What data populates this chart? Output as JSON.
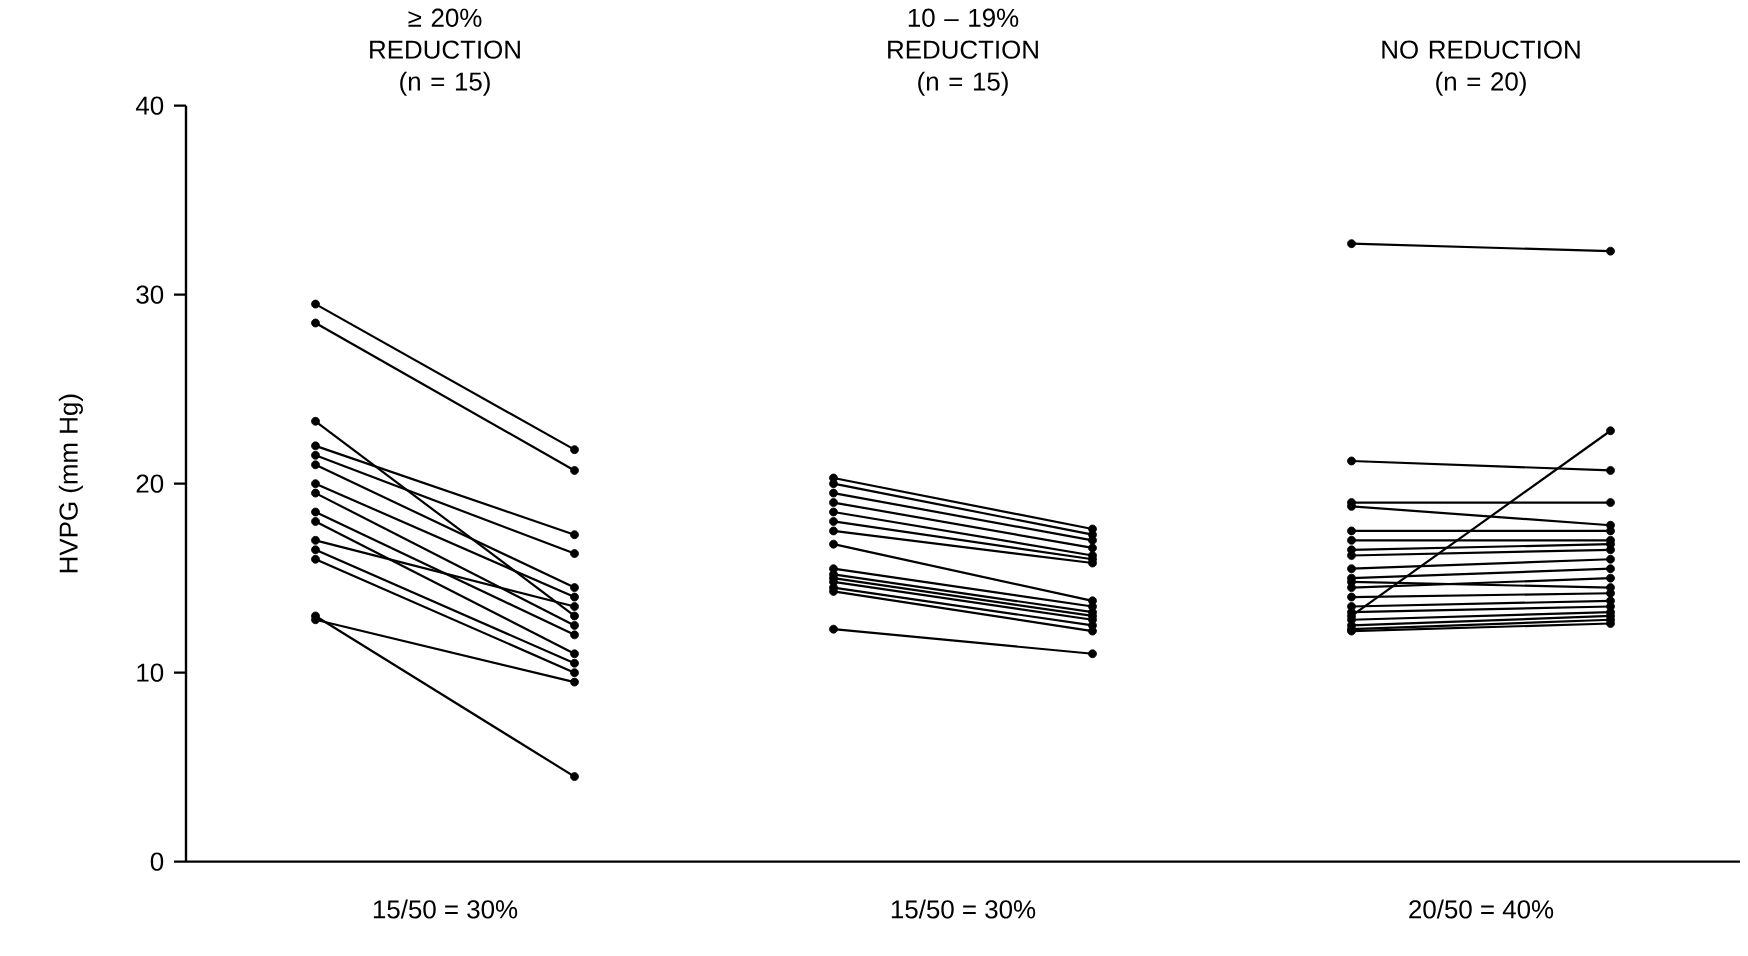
{
  "chart_data": {
    "type": "line",
    "ylabel": "HVPG (mm Hg)",
    "categories": [
      null,
      null,
      null,
      null,
      null,
      null
    ],
    "ylim": [
      0,
      40
    ],
    "yticks": [
      0,
      10,
      20,
      30,
      40
    ],
    "marker": "circle",
    "annotations": [
      "≥ 20% REDUCTION (n = 15)",
      "10 – 19% REDUCTION (n = 15)",
      "NO REDUCTION (n = 20)",
      "15/50 = 30%",
      "15/50 = 30%",
      "20/50 = 40%"
    ],
    "series": [
      {
        "color": "#000000",
        "values": [
          29.5,
          21.8,
          null,
          null,
          null,
          null
        ]
      },
      {
        "color": "#000000",
        "values": [
          28.5,
          20.7,
          null,
          null,
          null,
          null
        ]
      },
      {
        "color": "#000000",
        "values": [
          23.3,
          13,
          null,
          null,
          null,
          null
        ]
      },
      {
        "color": "#000000",
        "values": [
          22,
          17.3,
          null,
          null,
          null,
          null
        ]
      },
      {
        "color": "#000000",
        "values": [
          21.5,
          16.3,
          null,
          null,
          null,
          null
        ]
      },
      {
        "color": "#000000",
        "values": [
          21,
          14.5,
          null,
          null,
          null,
          null
        ]
      },
      {
        "color": "#000000",
        "values": [
          20,
          14,
          null,
          null,
          null,
          null
        ]
      },
      {
        "color": "#000000",
        "values": [
          19.5,
          12.5,
          null,
          null,
          null,
          null
        ]
      },
      {
        "color": "#000000",
        "values": [
          18.5,
          12,
          null,
          null,
          null,
          null
        ]
      },
      {
        "color": "#000000",
        "values": [
          18,
          11,
          null,
          null,
          null,
          null
        ]
      },
      {
        "color": "#000000",
        "values": [
          17,
          13.5,
          null,
          null,
          null,
          null
        ]
      },
      {
        "color": "#000000",
        "values": [
          16.5,
          10.5,
          null,
          null,
          null,
          null
        ]
      },
      {
        "color": "#000000",
        "values": [
          16,
          10,
          null,
          null,
          null,
          null
        ]
      },
      {
        "color": "#000000",
        "values": [
          13,
          4.5,
          null,
          null,
          null,
          null
        ]
      },
      {
        "color": "#000000",
        "values": [
          12.8,
          9.5,
          null,
          null,
          null,
          null
        ]
      },
      {
        "color": "#000000",
        "values": [
          null,
          null,
          20.3,
          17.6,
          null,
          null
        ]
      },
      {
        "color": "#000000",
        "values": [
          null,
          null,
          20,
          17.3,
          null,
          null
        ]
      },
      {
        "color": "#000000",
        "values": [
          null,
          null,
          19.5,
          17,
          null,
          null
        ]
      },
      {
        "color": "#000000",
        "values": [
          null,
          null,
          19,
          16.6,
          null,
          null
        ]
      },
      {
        "color": "#000000",
        "values": [
          null,
          null,
          18.5,
          16.2,
          null,
          null
        ]
      },
      {
        "color": "#000000",
        "values": [
          null,
          null,
          18,
          16,
          null,
          null
        ]
      },
      {
        "color": "#000000",
        "values": [
          null,
          null,
          17.5,
          15.8,
          null,
          null
        ]
      },
      {
        "color": "#000000",
        "values": [
          null,
          null,
          16.8,
          13.8,
          null,
          null
        ]
      },
      {
        "color": "#000000",
        "values": [
          null,
          null,
          15.5,
          13.5,
          null,
          null
        ]
      },
      {
        "color": "#000000",
        "values": [
          null,
          null,
          15.2,
          13.2,
          null,
          null
        ]
      },
      {
        "color": "#000000",
        "values": [
          null,
          null,
          15,
          13,
          null,
          null
        ]
      },
      {
        "color": "#000000",
        "values": [
          null,
          null,
          14.8,
          12.8,
          null,
          null
        ]
      },
      {
        "color": "#000000",
        "values": [
          null,
          null,
          14.5,
          12.5,
          null,
          null
        ]
      },
      {
        "color": "#000000",
        "values": [
          null,
          null,
          14.3,
          12.2,
          null,
          null
        ]
      },
      {
        "color": "#000000",
        "values": [
          null,
          null,
          12.3,
          11,
          null,
          null
        ]
      },
      {
        "color": "#000000",
        "values": [
          null,
          null,
          null,
          null,
          32.7,
          32.3
        ]
      },
      {
        "color": "#000000",
        "values": [
          null,
          null,
          null,
          null,
          21.2,
          20.7
        ]
      },
      {
        "color": "#000000",
        "values": [
          null,
          null,
          null,
          null,
          13,
          22.8
        ]
      },
      {
        "color": "#000000",
        "values": [
          null,
          null,
          null,
          null,
          19,
          19
        ]
      },
      {
        "color": "#000000",
        "values": [
          null,
          null,
          null,
          null,
          18.8,
          17.8
        ]
      },
      {
        "color": "#000000",
        "values": [
          null,
          null,
          null,
          null,
          17.5,
          17.5
        ]
      },
      {
        "color": "#000000",
        "values": [
          null,
          null,
          null,
          null,
          17,
          17
        ]
      },
      {
        "color": "#000000",
        "values": [
          null,
          null,
          null,
          null,
          16.5,
          16.8
        ]
      },
      {
        "color": "#000000",
        "values": [
          null,
          null,
          null,
          null,
          16.2,
          16.5
        ]
      },
      {
        "color": "#000000",
        "values": [
          null,
          null,
          null,
          null,
          15.5,
          16
        ]
      },
      {
        "color": "#000000",
        "values": [
          null,
          null,
          null,
          null,
          15,
          15.5
        ]
      },
      {
        "color": "#000000",
        "values": [
          null,
          null,
          null,
          null,
          14.8,
          14.5
        ]
      },
      {
        "color": "#000000",
        "values": [
          null,
          null,
          null,
          null,
          14.5,
          15
        ]
      },
      {
        "color": "#000000",
        "values": [
          null,
          null,
          null,
          null,
          14,
          14.2
        ]
      },
      {
        "color": "#000000",
        "values": [
          null,
          null,
          null,
          null,
          13.5,
          13.8
        ]
      },
      {
        "color": "#000000",
        "values": [
          null,
          null,
          null,
          null,
          13.2,
          13.5
        ]
      },
      {
        "color": "#000000",
        "values": [
          null,
          null,
          null,
          null,
          12.8,
          13.2
        ]
      },
      {
        "color": "#000000",
        "values": [
          null,
          null,
          null,
          null,
          12.5,
          13
        ]
      },
      {
        "color": "#000000",
        "values": [
          null,
          null,
          null,
          null,
          12.3,
          12.8
        ]
      },
      {
        "color": "#000000",
        "values": [
          null,
          null,
          null,
          null,
          12.2,
          12.6
        ]
      }
    ]
  }
}
